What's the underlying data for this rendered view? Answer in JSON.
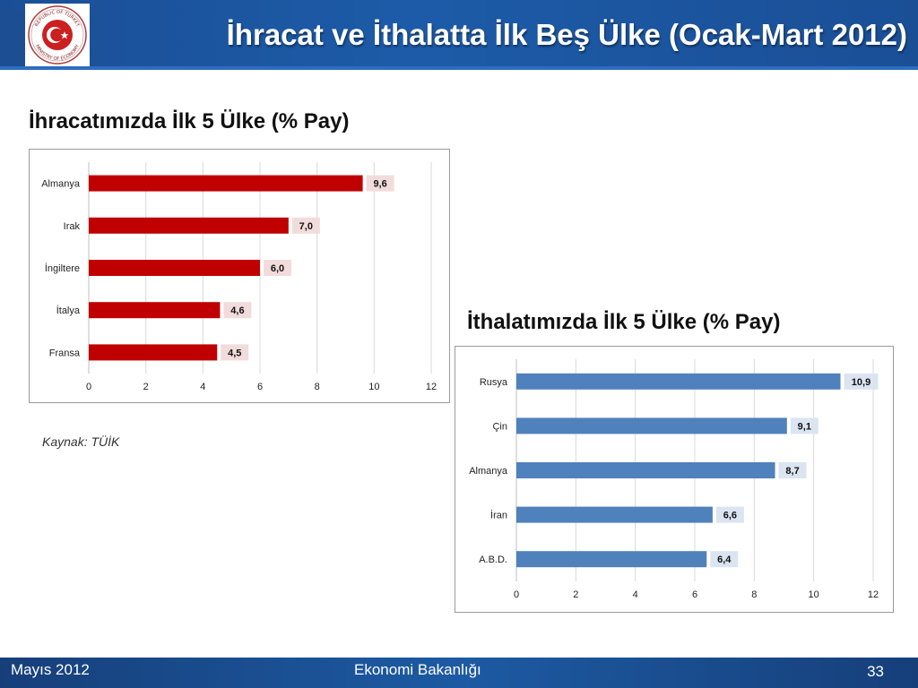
{
  "header": {
    "title": "İhracat ve İthalatta İlk Beş Ülke (Ocak-Mart 2012)"
  },
  "logo": {
    "text_top": "REPUBLIC OF TURKEY",
    "text_bottom": "MINISTRY OF ECONOMY"
  },
  "footer": {
    "date": "Mayıs 2012",
    "org": "Ekonomi Bakanlığı",
    "page": "33"
  },
  "source_note": "Kaynak: TÜİK",
  "chart_data": [
    {
      "type": "bar",
      "orientation": "horizontal",
      "title": "İhracatımızda İlk 5 Ülke (% Pay)",
      "categories": [
        "Almanya",
        "Irak",
        "İngiltere",
        "İtalya",
        "Fransa"
      ],
      "values": [
        9.6,
        7.0,
        6.0,
        4.6,
        4.5
      ],
      "value_labels": [
        "9,6",
        "7,0",
        "6,0",
        "4,6",
        "4,5"
      ],
      "xlim": [
        0,
        12
      ],
      "ticks": [
        0,
        2,
        4,
        6,
        8,
        10,
        12
      ],
      "grid": true,
      "color": "#c00000",
      "label_bg": "#f2dcdb"
    },
    {
      "type": "bar",
      "orientation": "horizontal",
      "title": "İthalatımızda İlk 5 Ülke (% Pay)",
      "categories": [
        "Rusya",
        "Çin",
        "Almanya",
        "İran",
        "A.B.D."
      ],
      "values": [
        10.9,
        9.1,
        8.7,
        6.6,
        6.4
      ],
      "value_labels": [
        "10,9",
        "9,1",
        "8,7",
        "6,6",
        "6,4"
      ],
      "xlim": [
        0,
        12
      ],
      "ticks": [
        0,
        2,
        4,
        6,
        8,
        10,
        12
      ],
      "grid": true,
      "color": "#4f81bd",
      "label_bg": "#dbe5f1"
    }
  ]
}
